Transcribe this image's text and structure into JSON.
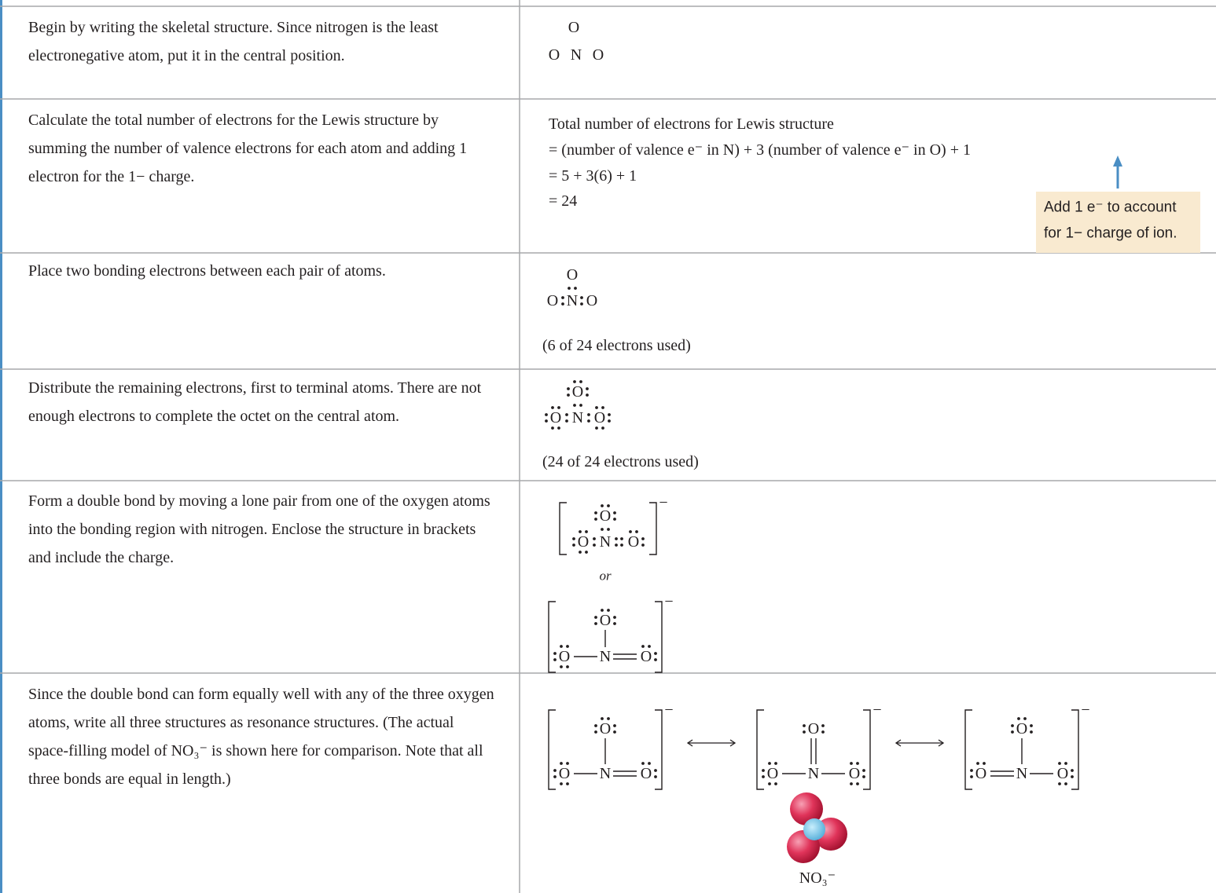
{
  "rows": [
    {
      "text": "Begin by writing the skeletal structure. Since nitrogen is the least electronegative atom, put it in the central position.",
      "atoms": [
        "O",
        "O",
        "N",
        "O"
      ]
    },
    {
      "text": "Calculate the total number of electrons for the Lewis structure by summing the number of valence electrons for each atom and adding 1 electron for the 1− charge.",
      "lines": [
        "Total number of electrons for Lewis structure",
        "= (number of valence e⁻ in N) + 3 (number of valence e⁻ in O) + 1",
        "= 5 + 3(6) + 1",
        "= 24"
      ],
      "callout": [
        "Add 1 e⁻ to account",
        "for 1− charge of ion."
      ]
    },
    {
      "text": "Place two bonding electrons between each pair of atoms.",
      "atoms": [
        "O",
        "O",
        "N",
        "O"
      ],
      "note": "(6 of 24 electrons used)"
    },
    {
      "text": "Distribute the remaining electrons, first to terminal atoms. There are not enough electrons to complete the octet on the central atom.",
      "atoms": [
        "O",
        "O",
        "N",
        "O"
      ],
      "note": "(24 of 24 electrons used)"
    },
    {
      "text": "Form a double bond by moving a lone pair from one of the oxygen atoms into the bonding region with nitrogen. Enclose the structure in brackets and include the charge.",
      "structures": [
        {
          "atoms": [
            "O",
            "O",
            "N",
            "O"
          ],
          "charge": "−"
        },
        {
          "atoms": [
            "O",
            "O",
            "N",
            "O"
          ],
          "charge": "−"
        }
      ],
      "separator": "or"
    },
    {
      "text": "Since the double bond can form equally well with any of the three oxygen atoms, write all three structures as resonance structures. (The actual space-filling model of NO₃⁻ is shown here for comparison. Note that all three bonds are equal in length.)",
      "structures": [
        {
          "atoms": [
            "O",
            "O",
            "N",
            "O"
          ],
          "charge": "−"
        },
        {
          "atoms": [
            "O",
            "O",
            "N",
            "O"
          ],
          "charge": "−"
        },
        {
          "atoms": [
            "O",
            "O",
            "N",
            "O"
          ],
          "charge": "−"
        }
      ],
      "model_caption": "NO₃⁻"
    }
  ]
}
